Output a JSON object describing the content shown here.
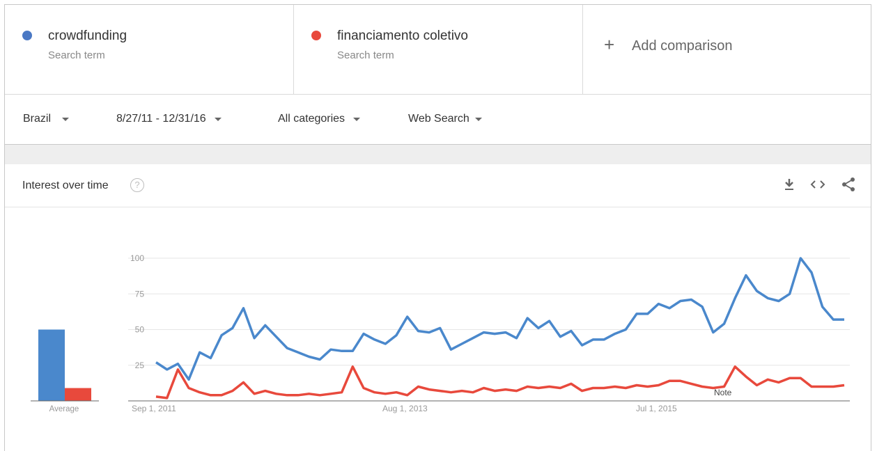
{
  "terms": [
    {
      "name": "crowdfunding",
      "sub": "Search term",
      "color": "#4a78c4"
    },
    {
      "name": "financiamento coletivo",
      "sub": "Search term",
      "color": "#e8493c"
    }
  ],
  "add_comparison": {
    "icon": "+",
    "label": "Add comparison"
  },
  "filters": {
    "region": "Brazil",
    "date_range": "8/27/11 - 12/31/16",
    "category": "All categories",
    "search_type": "Web Search"
  },
  "card": {
    "title": "Interest over time",
    "help_icon": "?",
    "tools": [
      "download-icon",
      "embed-icon",
      "share-icon"
    ]
  },
  "average": {
    "label": "Average",
    "values": [
      50,
      9
    ]
  },
  "chart_data": {
    "type": "line",
    "ylim": [
      0,
      100
    ],
    "yticks": [
      25,
      50,
      75,
      100
    ],
    "x_tick_labels": [
      "Sep 1, 2011",
      "Aug 1, 2013",
      "Jul 1, 2015"
    ],
    "note_label": "Note",
    "series": [
      {
        "name": "crowdfunding",
        "color": "#4a88cc",
        "values": [
          27,
          22,
          26,
          15,
          34,
          30,
          46,
          51,
          65,
          44,
          53,
          45,
          37,
          34,
          31,
          29,
          36,
          35,
          35,
          47,
          43,
          40,
          46,
          59,
          49,
          48,
          51,
          36,
          40,
          44,
          48,
          47,
          48,
          44,
          58,
          51,
          56,
          45,
          49,
          39,
          43,
          43,
          47,
          50,
          61,
          61,
          68,
          65,
          70,
          71,
          66,
          48,
          54,
          72,
          88,
          77,
          72,
          70,
          75,
          100,
          90,
          66,
          57,
          57
        ]
      },
      {
        "name": "financiamento coletivo",
        "color": "#e8493c",
        "values": [
          3,
          2,
          22,
          9,
          6,
          4,
          4,
          7,
          13,
          5,
          7,
          5,
          4,
          4,
          5,
          4,
          5,
          6,
          24,
          9,
          6,
          5,
          6,
          4,
          10,
          8,
          7,
          6,
          7,
          6,
          9,
          7,
          8,
          7,
          10,
          9,
          10,
          9,
          12,
          7,
          9,
          9,
          10,
          9,
          11,
          10,
          11,
          14,
          14,
          12,
          10,
          9,
          10,
          24,
          17,
          11,
          15,
          13,
          16,
          16,
          10,
          10,
          10,
          11
        ]
      }
    ]
  }
}
